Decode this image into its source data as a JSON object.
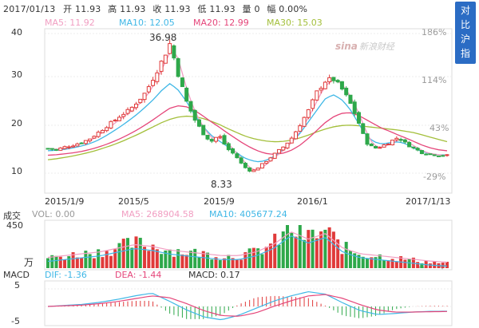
{
  "header": {
    "date": "2017/01/13",
    "open_label": "开",
    "open": "11.93",
    "high_label": "高",
    "high": "11.93",
    "close_label": "收",
    "close": "11.93",
    "low_label": "低",
    "low": "11.93",
    "vol_label": "量",
    "vol": "0",
    "amp_label": "幅",
    "amp": "0.00%"
  },
  "compare_button": {
    "chars": [
      "对",
      "比",
      "沪",
      "指"
    ]
  },
  "watermark": {
    "logo": "sina",
    "text": "新浪财经"
  },
  "ma": {
    "ma5": "MA5: 11.92",
    "ma10": "MA10: 12.05",
    "ma20": "MA20: 12.99",
    "ma30": "MA30: 15.03"
  },
  "price_axis": {
    "ticks": [
      "40",
      "30",
      "20",
      "10"
    ]
  },
  "pct_axis": {
    "ticks": [
      "186%",
      "114%",
      "43%",
      "-29%"
    ]
  },
  "dates": [
    "2015/1/9",
    "2015/5",
    "2015/9",
    "2016/1",
    "2017/1/13"
  ],
  "annotations": {
    "high": "36.98",
    "low": "8.33"
  },
  "volume": {
    "title": "成交",
    "vol": "VOL: 0.00",
    "ma5": "MA5: 268904.58",
    "ma10": "MA10: 405677.24",
    "axis_top": "450",
    "axis_unit": "万"
  },
  "macd": {
    "title": "MACD",
    "dif": "DIF: -1.36",
    "dea": "DEA: -1.44",
    "macd": "MACD: 0.17",
    "axis_top": "5",
    "axis_bottom": "-5"
  },
  "colors": {
    "up": "#e03a3a",
    "down": "#2ea84a",
    "ma5": "#f19ec2",
    "ma10": "#3fb7e6",
    "ma20": "#e5467a",
    "ma30": "#a3bf3a",
    "accent": "#2b6cc4"
  },
  "chart_data": {
    "type": "candlestick",
    "ylim": [
      8,
      40
    ],
    "price_path": [
      13.5,
      13.2,
      13.8,
      14.2,
      14.8,
      15.5,
      16.8,
      18.2,
      19.5,
      21.0,
      22.0,
      24.0,
      26.0,
      29.5,
      33.0,
      36.98,
      30.0,
      24.0,
      20.0,
      17.0,
      15.0,
      16.5,
      13.5,
      12.0,
      9.5,
      8.33,
      9.5,
      11.0,
      12.5,
      14.0,
      16.0,
      19.0,
      22.0,
      26.0,
      28.5,
      29.0,
      27.0,
      24.0,
      20.0,
      15.0,
      13.5,
      14.0,
      15.0,
      16.0,
      14.5,
      13.5,
      12.5,
      12.2,
      12.0,
      11.93
    ],
    "ma10_path": [
      13.0,
      13.1,
      13.3,
      13.6,
      14.0,
      14.5,
      15.2,
      16.2,
      17.3,
      18.5,
      19.8,
      21.2,
      22.8,
      24.5,
      26.5,
      28.0,
      26.5,
      24.0,
      21.0,
      18.5,
      16.5,
      15.2,
      14.0,
      12.8,
      11.5,
      10.8,
      10.5,
      11.0,
      12.0,
      13.5,
      15.0,
      17.0,
      19.5,
      22.0,
      24.5,
      25.5,
      24.5,
      22.5,
      19.5,
      16.5,
      15.0,
      14.5,
      14.8,
      15.0,
      14.5,
      13.5,
      12.8,
      12.3,
      12.1,
      12.05
    ],
    "ma20_path": [
      12.0,
      12.1,
      12.3,
      12.5,
      12.8,
      13.2,
      13.7,
      14.3,
      15.0,
      15.8,
      16.7,
      17.7,
      18.8,
      20.0,
      21.3,
      22.5,
      23.0,
      22.8,
      22.0,
      20.8,
      19.5,
      18.3,
      17.0,
      15.8,
      14.6,
      13.6,
      12.8,
      12.3,
      12.2,
      12.5,
      13.2,
      14.3,
      15.8,
      17.5,
      19.2,
      20.5,
      21.3,
      21.5,
      21.0,
      20.0,
      19.0,
      18.0,
      17.3,
      16.5,
      15.8,
      15.0,
      14.2,
      13.6,
      13.2,
      12.99
    ],
    "ma30_path": [
      11.0,
      11.2,
      11.5,
      11.8,
      12.2,
      12.6,
      13.1,
      13.7,
      14.3,
      15.0,
      15.8,
      16.6,
      17.5,
      18.4,
      19.3,
      20.0,
      20.5,
      20.7,
      20.6,
      20.2,
      19.6,
      18.9,
      18.0,
      17.2,
      16.4,
      15.8,
      15.4,
      15.1,
      15.0,
      15.1,
      15.4,
      15.9,
      16.5,
      17.2,
      17.8,
      18.3,
      18.6,
      18.7,
      18.6,
      18.4,
      18.2,
      18.0,
      17.8,
      17.6,
      17.3,
      17.0,
      16.5,
      16.0,
      15.5,
      15.03
    ]
  }
}
